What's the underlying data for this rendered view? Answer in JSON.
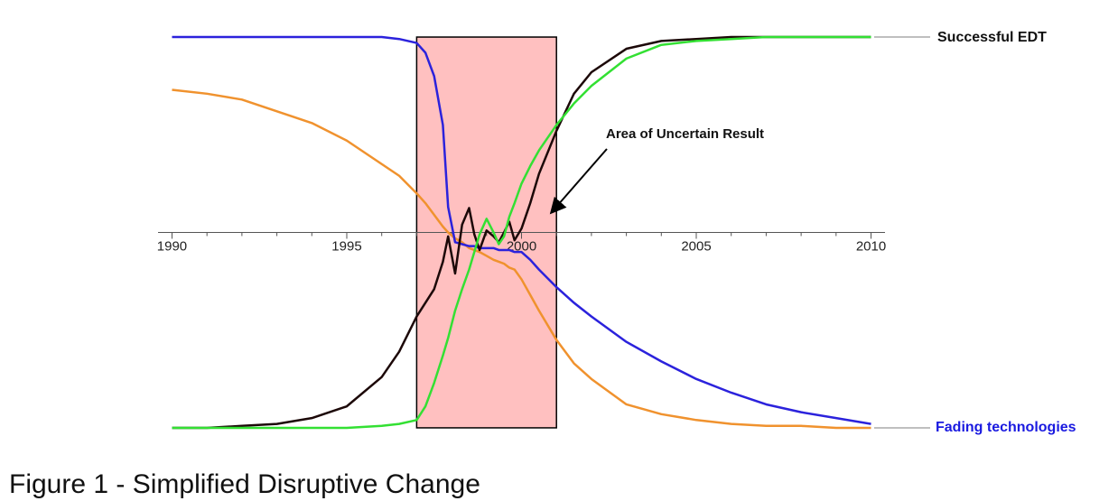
{
  "chart_data": {
    "type": "line",
    "caption": "Figure 1 - Simplified Disruptive Change",
    "xlim": [
      1989.6,
      2010.4
    ],
    "ylim": [
      -1.1,
      1.1
    ],
    "xticks": [
      1990,
      1995,
      2000,
      2005,
      2010
    ],
    "x_minor_ticks": [
      1990,
      1991,
      1992,
      1993,
      1994,
      1995,
      1996,
      1997,
      1998,
      1999,
      2000,
      2001,
      2002,
      2003,
      2004,
      2005,
      2006,
      2007,
      2008,
      2009,
      2010
    ],
    "x": [
      1990,
      1991,
      1992,
      1993,
      1994,
      1995,
      1996,
      1996.5,
      1997,
      1997.25,
      1997.5,
      1997.75,
      1997.9,
      1998.1,
      1998.3,
      1998.5,
      1998.65,
      1998.8,
      1999,
      1999.2,
      1999.35,
      1999.5,
      1999.65,
      1999.8,
      2000,
      2000.25,
      2000.5,
      2001,
      2001.5,
      2002,
      2003,
      2004,
      2005,
      2006,
      2007,
      2008,
      2009,
      2010
    ],
    "series": [
      {
        "color": "#f0922e",
        "values": [
          0.73,
          0.71,
          0.68,
          0.62,
          0.56,
          0.47,
          0.35,
          0.29,
          0.2,
          0.15,
          0.09,
          0.03,
          0,
          -0.03,
          -0.05,
          -0.08,
          -0.09,
          -0.1,
          -0.12,
          -0.14,
          -0.15,
          -0.16,
          -0.18,
          -0.19,
          -0.24,
          -0.32,
          -0.4,
          -0.55,
          -0.67,
          -0.75,
          -0.88,
          -0.93,
          -0.96,
          -0.98,
          -0.99,
          -0.99,
          -1,
          -1
        ]
      },
      {
        "color": "#2b22dc",
        "values": [
          1,
          1,
          1,
          1,
          1,
          1,
          1,
          0.99,
          0.97,
          0.92,
          0.8,
          0.55,
          0.13,
          -0.05,
          -0.06,
          -0.07,
          -0.07,
          -0.08,
          -0.08,
          -0.08,
          -0.09,
          -0.09,
          -0.09,
          -0.1,
          -0.1,
          -0.14,
          -0.19,
          -0.28,
          -0.36,
          -0.43,
          -0.56,
          -0.66,
          -0.75,
          -0.82,
          -0.88,
          -0.92,
          -0.95,
          -0.98
        ]
      },
      {
        "color": "#1c0808",
        "values": [
          -1,
          -1,
          -0.99,
          -0.98,
          -0.95,
          -0.89,
          -0.74,
          -0.61,
          -0.43,
          -0.36,
          -0.29,
          -0.15,
          -0.02,
          -0.21,
          0.04,
          0.125,
          -0.01,
          -0.09,
          0.01,
          -0.02,
          -0.05,
          0,
          0.055,
          -0.04,
          0.02,
          0.15,
          0.3,
          0.52,
          0.71,
          0.82,
          0.94,
          0.98,
          0.99,
          1,
          1,
          1,
          1,
          1
        ]
      },
      {
        "color": "#33e033",
        "values": [
          -1,
          -1,
          -1,
          -1,
          -1,
          -1,
          -0.99,
          -0.98,
          -0.96,
          -0.89,
          -0.77,
          -0.63,
          -0.54,
          -0.4,
          -0.29,
          -0.19,
          -0.1,
          -0.01,
          0.07,
          0,
          -0.06,
          -0.02,
          0.08,
          0.15,
          0.25,
          0.34,
          0.42,
          0.55,
          0.66,
          0.75,
          0.89,
          0.96,
          0.98,
          0.99,
          1,
          1,
          1,
          1
        ]
      }
    ],
    "highlight": {
      "text": "Area of Uncertain Result",
      "x": [
        1997,
        2001
      ],
      "y": [
        -1,
        1
      ],
      "color": "#ffc0c0"
    },
    "annotations": [
      {
        "text": "Successful EDT",
        "color": "#111111"
      },
      {
        "text": "Fading technologies",
        "color": "#1a1ae0"
      }
    ]
  }
}
